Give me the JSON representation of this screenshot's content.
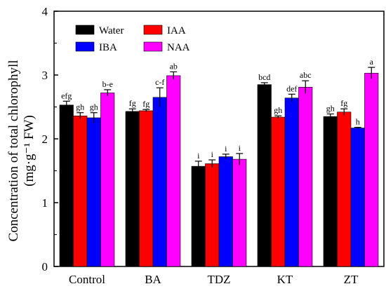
{
  "chart_data": {
    "type": "bar",
    "title": "",
    "xlabel": "",
    "ylabel": "Concentration of total chlorophyll",
    "ylabel_unit": "(mg·g⁻¹ FW)",
    "ylim": [
      0,
      4
    ],
    "yticks": [
      "0",
      "1",
      "2",
      "3",
      "4"
    ],
    "categories": [
      "Control",
      "BA",
      "TDZ",
      "KT",
      "ZT"
    ],
    "legend_position": "top-left",
    "grid": false,
    "series": [
      {
        "name": "Water",
        "color": "#000000",
        "values": [
          2.53,
          2.43,
          1.57,
          2.85,
          2.35
        ],
        "errors": [
          0.06,
          0.04,
          0.08,
          0.03,
          0.04
        ],
        "labels": [
          "efg",
          "fg",
          "i",
          "bcd",
          "gh"
        ]
      },
      {
        "name": "IAA",
        "color": "#ff0000",
        "values": [
          2.36,
          2.44,
          1.61,
          2.34,
          2.42
        ],
        "errors": [
          0.05,
          0.02,
          0.06,
          0.02,
          0.05
        ],
        "labels": [
          "gh",
          "fg",
          "i",
          "gh",
          "fg"
        ]
      },
      {
        "name": "IBA",
        "color": "#0000ff",
        "values": [
          2.33,
          2.65,
          1.72,
          2.64,
          2.17
        ],
        "errors": [
          0.08,
          0.15,
          0.04,
          0.06,
          0.01
        ],
        "labels": [
          "gh",
          "c-f",
          "i",
          "def",
          "h"
        ]
      },
      {
        "name": "NAA",
        "color": "#ff00ff",
        "values": [
          2.72,
          2.99,
          1.68,
          2.81,
          3.03
        ],
        "errors": [
          0.05,
          0.06,
          0.09,
          0.1,
          0.09
        ],
        "labels": [
          "b-e",
          "ab",
          "i",
          "abc",
          "a"
        ]
      }
    ]
  }
}
